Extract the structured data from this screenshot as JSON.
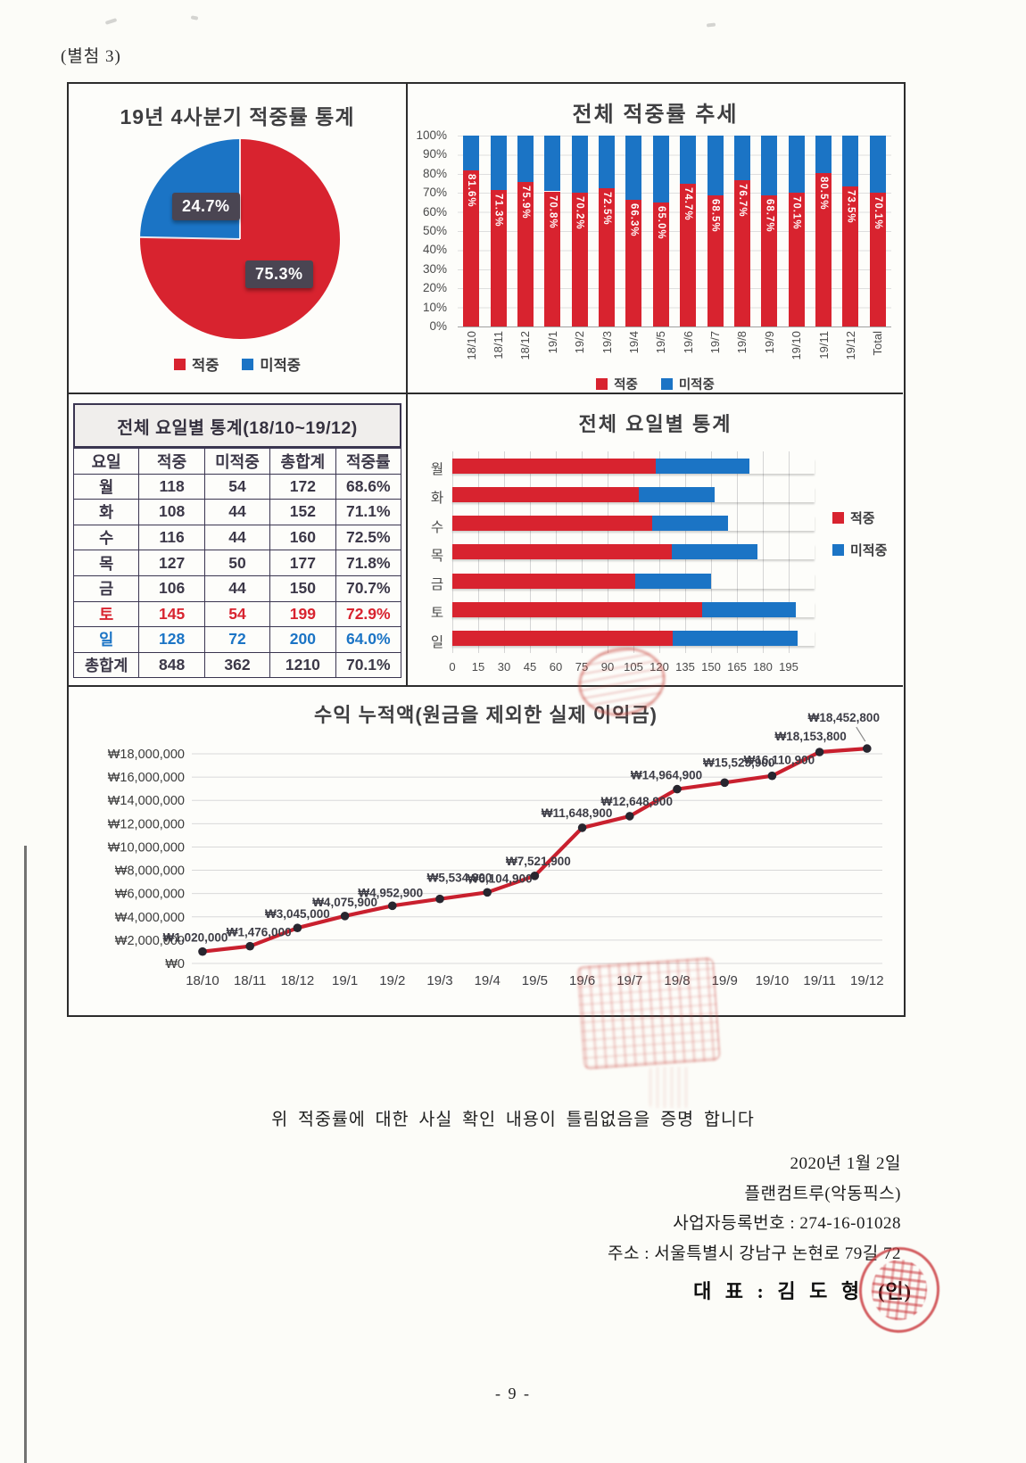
{
  "page": {
    "attachment_label": "(별첨 3)",
    "certification_text": "위 적중률에 대한 사실 확인 내용이 틀림없음을 증명 합니다",
    "sign": {
      "date": "2020년 1월 2일",
      "company": "플랜컴트루(악동픽스)",
      "registration": "사업자등록번호 : 274-16-01028",
      "address": "주소 : 서울특별시 강남구 논현로 79길 72",
      "representative_label": "대 표 : 김 도 형",
      "seal_label": "(인)"
    },
    "page_number": "- 9 -"
  },
  "legend": {
    "hit_label": "적중",
    "miss_label": "미적중"
  },
  "colors": {
    "hit": "#d8232f",
    "miss": "#1b74c5",
    "chip_bg": "#4a4552",
    "line": "#c9202e",
    "marker": "#28262f",
    "stamp": "#c84840",
    "table_border": "#3a3550"
  },
  "chart_data": [
    {
      "id": "quarterly_pie",
      "type": "pie",
      "title": "19년 4사분기 적중률 통계",
      "slices": [
        {
          "label": "적중",
          "value": 75.3,
          "display": "75.3%",
          "color_key": "hit"
        },
        {
          "label": "미적중",
          "value": 24.7,
          "display": "24.7%",
          "color_key": "miss"
        }
      ],
      "legend": [
        "적중",
        "미적중"
      ],
      "legend_position": "bottom"
    },
    {
      "id": "overall_trend",
      "type": "bar",
      "stacked": true,
      "title": "전체 적중률 추세",
      "categories": [
        "18/10",
        "18/11",
        "18/12",
        "19/1",
        "19/2",
        "19/3",
        "19/4",
        "19/5",
        "19/6",
        "19/7",
        "19/8",
        "19/9",
        "19/10",
        "19/11",
        "19/12",
        "Total"
      ],
      "series": [
        {
          "name": "적중",
          "values": [
            81.6,
            71.3,
            75.9,
            70.8,
            70.2,
            72.5,
            66.3,
            65.0,
            74.7,
            68.5,
            76.7,
            68.7,
            70.1,
            80.5,
            73.5,
            70.1
          ]
        },
        {
          "name": "미적중",
          "values": [
            18.4,
            28.7,
            24.1,
            29.2,
            29.8,
            27.5,
            33.7,
            35.0,
            25.3,
            31.5,
            23.3,
            31.3,
            29.9,
            19.5,
            26.5,
            29.9
          ]
        }
      ],
      "value_labels": [
        "81.6%",
        "71.3%",
        "75.9%",
        "70.8%",
        "70.2%",
        "72.5%",
        "66.3%",
        "65.0%",
        "74.7%",
        "68.5%",
        "76.7%",
        "68.7%",
        "70.1%",
        "80.5%",
        "73.5%",
        "70.1%"
      ],
      "y_ticks": [
        "100%",
        "90%",
        "80%",
        "70%",
        "60%",
        "50%",
        "40%",
        "30%",
        "20%",
        "10%",
        "0%"
      ],
      "ylim": [
        0,
        100
      ],
      "grid": true,
      "legend": [
        "적중",
        "미적중"
      ],
      "legend_position": "bottom"
    },
    {
      "id": "weekday_table",
      "type": "table",
      "title": "전체 요일별 통계(18/10~19/12)",
      "headers": [
        "요일",
        "적중",
        "미적중",
        "총합계",
        "적중률"
      ],
      "rows": [
        {
          "cells": [
            "월",
            "118",
            "54",
            "172",
            "68.6%"
          ],
          "style": "normal"
        },
        {
          "cells": [
            "화",
            "108",
            "44",
            "152",
            "71.1%"
          ],
          "style": "normal"
        },
        {
          "cells": [
            "수",
            "116",
            "44",
            "160",
            "72.5%"
          ],
          "style": "normal"
        },
        {
          "cells": [
            "목",
            "127",
            "50",
            "177",
            "71.8%"
          ],
          "style": "normal"
        },
        {
          "cells": [
            "금",
            "106",
            "44",
            "150",
            "70.7%"
          ],
          "style": "normal"
        },
        {
          "cells": [
            "토",
            "145",
            "54",
            "199",
            "72.9%"
          ],
          "style": "hit"
        },
        {
          "cells": [
            "일",
            "128",
            "72",
            "200",
            "64.0%"
          ],
          "style": "miss"
        },
        {
          "cells": [
            "총합계",
            "848",
            "362",
            "1210",
            "70.1%"
          ],
          "style": "total"
        }
      ]
    },
    {
      "id": "weekday_bars",
      "type": "bar",
      "orientation": "horizontal",
      "stacked": true,
      "title": "전체 요일별 통계",
      "categories": [
        "월",
        "화",
        "수",
        "목",
        "금",
        "토",
        "일"
      ],
      "series": [
        {
          "name": "적중",
          "values": [
            118,
            108,
            116,
            127,
            106,
            145,
            128
          ]
        },
        {
          "name": "미적중",
          "values": [
            54,
            44,
            44,
            50,
            44,
            54,
            72
          ]
        }
      ],
      "x_ticks": [
        0,
        15,
        30,
        45,
        60,
        75,
        90,
        105,
        120,
        135,
        150,
        165,
        180,
        195
      ],
      "xlim": [
        0,
        210
      ],
      "grid": true,
      "legend": [
        "적중",
        "미적중"
      ],
      "legend_position": "right"
    },
    {
      "id": "profit_line",
      "type": "line",
      "title": "수익 누적액(원금을 제외한 실제 이익금)",
      "x": [
        "18/10",
        "18/11",
        "18/12",
        "19/1",
        "19/2",
        "19/3",
        "19/4",
        "19/5",
        "19/6",
        "19/7",
        "19/8",
        "19/9",
        "19/10",
        "19/11",
        "19/12"
      ],
      "values": [
        1020000,
        1476000,
        3045000,
        4075900,
        4952900,
        5534900,
        6104900,
        7521900,
        11648900,
        12648900,
        14964900,
        15525900,
        16110900,
        18153800,
        18452800
      ],
      "value_labels": [
        "₩1,020,000",
        "₩1,476,000",
        "₩3,045,000",
        "₩4,075,900",
        "₩4,952,900",
        "₩5,534,900",
        "₩6,104,900",
        "₩7,521,900",
        "₩11,648,900",
        "₩12,648,900",
        "₩14,964,900",
        "₩15,525,900",
        "₩16,110,900",
        "₩18,153,800",
        "₩18,452,800"
      ],
      "y_ticks": [
        "₩18,000,000",
        "₩16,000,000",
        "₩14,000,000",
        "₩12,000,000",
        "₩10,000,000",
        "₩8,000,000",
        "₩6,000,000",
        "₩4,000,000",
        "₩2,000,000",
        "₩0"
      ],
      "ylim": [
        0,
        18000000
      ],
      "grid": true
    }
  ]
}
